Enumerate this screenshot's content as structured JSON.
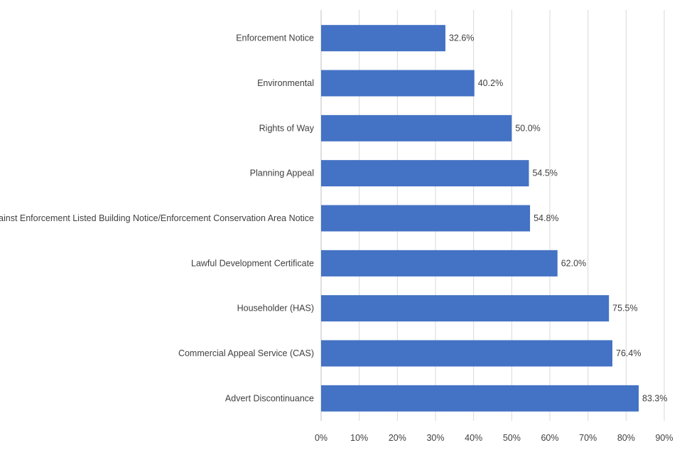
{
  "chart_data": {
    "type": "bar",
    "orientation": "horizontal",
    "title": "",
    "xlabel": "",
    "ylabel": "",
    "categories": [
      "Enforcement Notice",
      "Environmental",
      "Rights of Way",
      "Planning Appeal",
      "Appeal against Enforcement Listed Building Notice/Enforcement Conservation Area Notice",
      "Lawful Development Certificate",
      "Householder (HAS)",
      "Commercial Appeal Service (CAS)",
      "Advert Discontinuance"
    ],
    "values": [
      32.6,
      40.2,
      50.0,
      54.5,
      54.8,
      62.0,
      75.5,
      76.4,
      83.3
    ],
    "value_labels": [
      "32.6%",
      "40.2%",
      "50.0%",
      "54.5%",
      "54.8%",
      "62.0%",
      "75.5%",
      "76.4%",
      "83.3%"
    ],
    "xlim": [
      0,
      90
    ],
    "x_ticks": [
      0,
      10,
      20,
      30,
      40,
      50,
      60,
      70,
      80,
      90
    ],
    "x_tick_labels": [
      "0%",
      "10%",
      "20%",
      "30%",
      "40%",
      "50%",
      "60%",
      "70%",
      "80%",
      "90%"
    ],
    "grid": true,
    "legend": "none",
    "bar_color": "#4472c4"
  }
}
